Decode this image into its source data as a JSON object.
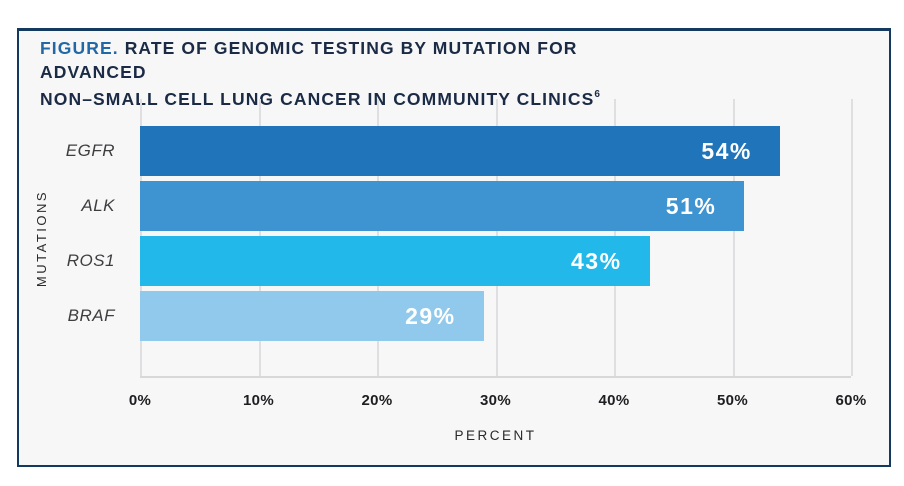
{
  "title": {
    "label": "FIGURE.",
    "line1": "RATE OF GENOMIC TESTING BY MUTATION FOR ADVANCED",
    "line2": "NON–SMALL CELL LUNG CANCER IN COMMUNITY CLINICS",
    "footnote": "6"
  },
  "chart_data": {
    "type": "bar",
    "orientation": "horizontal",
    "title": "FIGURE. RATE OF GENOMIC TESTING BY MUTATION FOR ADVANCED NON–SMALL CELL LUNG CANCER IN COMMUNITY CLINICS",
    "categories": [
      "EGFR",
      "ALK",
      "ROS1",
      "BRAF"
    ],
    "values": [
      54,
      51,
      43,
      29
    ],
    "value_labels": [
      "54%",
      "51%",
      "43%",
      "29%"
    ],
    "bar_colors": [
      "#1F74BA",
      "#3E93D1",
      "#22B8EA",
      "#90C9EB"
    ],
    "xlabel": "PERCENT",
    "ylabel": "MUTATIONS",
    "xlim": [
      0,
      60
    ],
    "x_ticks": [
      0,
      10,
      20,
      30,
      40,
      50,
      60
    ],
    "x_tick_labels": [
      "0%",
      "10%",
      "20%",
      "30%",
      "40%",
      "50%",
      "60%"
    ],
    "grid": "vertical",
    "legend": "none"
  },
  "colors": {
    "card_background": "#F7F7F8",
    "border_navy": "#14395E",
    "title_navy": "#1B2B45",
    "figure_label_blue": "#2267A6",
    "gridline": "#DFDFE1",
    "axis_line": "#D8D8DA",
    "value_label_text": "#FFFFFF"
  }
}
